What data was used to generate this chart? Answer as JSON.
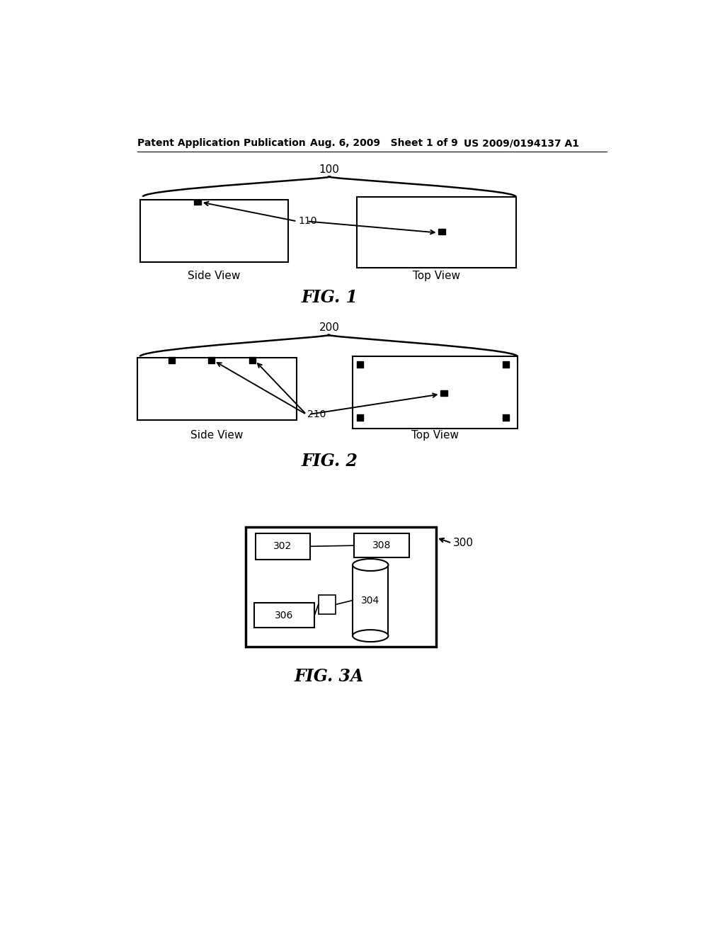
{
  "bg_color": "#ffffff",
  "header_left": "Patent Application Publication",
  "header_mid": "Aug. 6, 2009   Sheet 1 of 9",
  "header_right": "US 2009/0194137 A1",
  "fig1_label": "100",
  "fig1_caption": "FIG. 1",
  "fig1_side_label": "Side View",
  "fig1_top_label": "Top View",
  "fig1_ref_label": "110",
  "fig2_label": "200",
  "fig2_caption": "FIG. 2",
  "fig2_side_label": "Side View",
  "fig2_top_label": "Top View",
  "fig2_ref_label": "210",
  "fig3a_caption": "FIG. 3A",
  "fig3a_label": "300",
  "box302_label": "302",
  "box304_label": "304",
  "box306_label": "306",
  "box308_label": "308"
}
